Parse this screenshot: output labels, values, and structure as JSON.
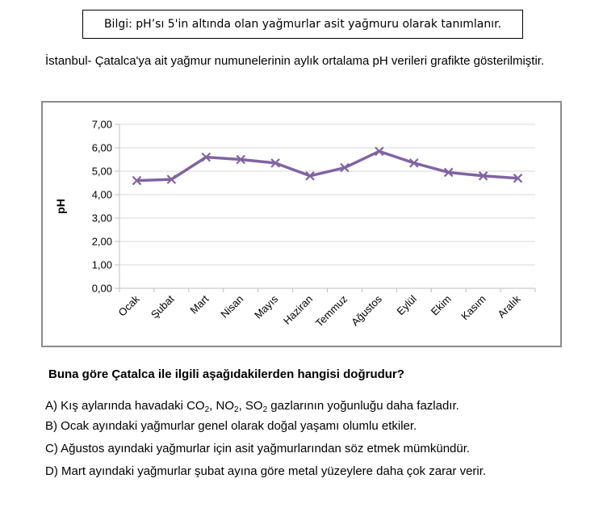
{
  "info_box": "Bilgi: pH’sı 5'in altında olan yağmurlar asit yağmuru olarak tanımlanır.",
  "intro": "İstanbul- Çatalca'ya ait yağmur numunelerinin aylık ortalama pH verileri grafikte gösterilmiştir.",
  "chart_data": {
    "type": "line",
    "title": "",
    "xlabel": "",
    "ylabel": "pH",
    "ylim": [
      0,
      7
    ],
    "yticks": [
      "0,00",
      "1,00",
      "2,00",
      "3,00",
      "4,00",
      "5,00",
      "6,00",
      "7,00"
    ],
    "categories": [
      "Ocak",
      "Şubat",
      "Mart",
      "Nisan",
      "Mayıs",
      "Haziran",
      "Temmuz",
      "Ağustos",
      "Eylül",
      "Ekim",
      "Kasım",
      "Aralık"
    ],
    "series": [
      {
        "name": "",
        "values": [
          4.6,
          4.65,
          5.6,
          5.5,
          5.35,
          4.8,
          5.15,
          5.85,
          5.35,
          4.95,
          4.8,
          4.7
        ],
        "color": "#8064a2"
      }
    ],
    "grid": true,
    "legend": "none"
  },
  "question": "Buna göre Çatalca ile ilgili aşağıdakilerden hangisi doğrudur?",
  "options": {
    "a": {
      "p1": "A) Kış aylarında havadaki CO",
      "s1": "2",
      "p2": ", NO",
      "s2": "2",
      "p3": ", SO",
      "s3": "2",
      "p4": " gazlarının yoğunluğu daha fazladır."
    },
    "b": "B) Ocak ayındaki yağmurlar genel olarak doğal yaşamı olumlu etkiler.",
    "c": "C) Ağustos ayındaki yağmurlar için asit yağmurlarından söz etmek mümkündür.",
    "d": "D) Mart ayındaki yağmurlar şubat ayına göre metal yüzeylere daha çok zarar verir."
  }
}
